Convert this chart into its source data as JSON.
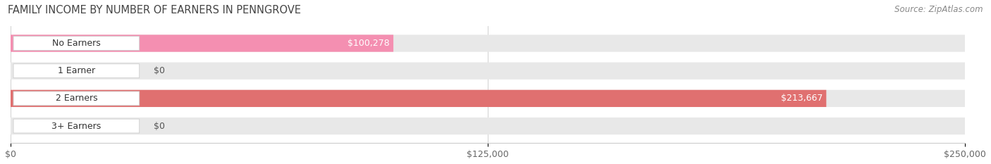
{
  "title": "FAMILY INCOME BY NUMBER OF EARNERS IN PENNGROVE",
  "source": "Source: ZipAtlas.com",
  "categories": [
    "No Earners",
    "1 Earner",
    "2 Earners",
    "3+ Earners"
  ],
  "values": [
    100278,
    0,
    213667,
    0
  ],
  "bar_colors": [
    "#f48fb1",
    "#f5c896",
    "#e07070",
    "#90b8e0"
  ],
  "xlim": [
    0,
    250000
  ],
  "xticks": [
    0,
    125000,
    250000
  ],
  "xtick_labels": [
    "$0",
    "$125,000",
    "$250,000"
  ],
  "value_labels": [
    "$100,278",
    "$0",
    "$213,667",
    "$0"
  ],
  "title_fontsize": 10.5,
  "source_fontsize": 8.5,
  "tick_fontsize": 9,
  "bar_label_fontsize": 9,
  "cat_fontsize": 9,
  "bar_track_color": "#e8e8e8",
  "row_sep_color": "#ffffff",
  "grid_color": "#d0d0d0"
}
